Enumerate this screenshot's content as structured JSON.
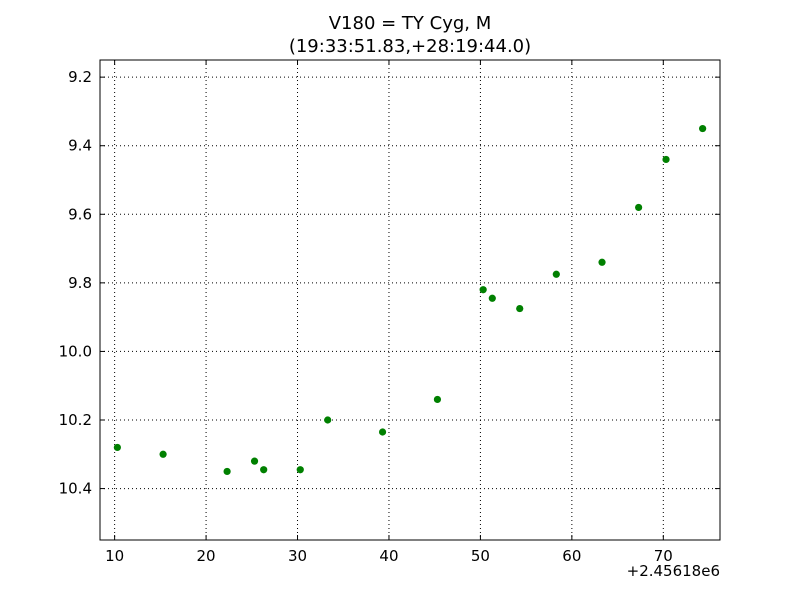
{
  "chart_data": {
    "type": "scatter",
    "title": "V180 = TY Cyg, M",
    "subtitle": "(19:33:51.83,+28:19:44.0)",
    "xlabel": "",
    "ylabel": "",
    "x_offset_label": "+2.45618e6",
    "xlim": [
      8.4,
      76.2
    ],
    "ylim": [
      10.55,
      9.15
    ],
    "y_inverted": true,
    "xticks": [
      10,
      20,
      30,
      40,
      50,
      60,
      70
    ],
    "yticks": [
      9.2,
      9.4,
      9.6,
      9.8,
      10.0,
      10.2,
      10.4
    ],
    "ytick_labels": [
      "9.2",
      "9.4",
      "9.6",
      "9.8",
      "10.0",
      "10.2",
      "10.4"
    ],
    "grid": true,
    "marker_color": "#008000",
    "points": [
      {
        "x": 10.3,
        "y": 10.28
      },
      {
        "x": 15.3,
        "y": 10.3
      },
      {
        "x": 22.3,
        "y": 10.35
      },
      {
        "x": 25.3,
        "y": 10.32
      },
      {
        "x": 26.3,
        "y": 10.345
      },
      {
        "x": 30.3,
        "y": 10.345
      },
      {
        "x": 33.3,
        "y": 10.2
      },
      {
        "x": 39.3,
        "y": 10.235
      },
      {
        "x": 45.3,
        "y": 10.14
      },
      {
        "x": 50.3,
        "y": 9.82
      },
      {
        "x": 51.3,
        "y": 9.845
      },
      {
        "x": 54.3,
        "y": 9.875
      },
      {
        "x": 58.3,
        "y": 9.775
      },
      {
        "x": 63.3,
        "y": 9.74
      },
      {
        "x": 67.3,
        "y": 9.58
      },
      {
        "x": 70.3,
        "y": 9.44
      },
      {
        "x": 74.3,
        "y": 9.35
      }
    ]
  }
}
